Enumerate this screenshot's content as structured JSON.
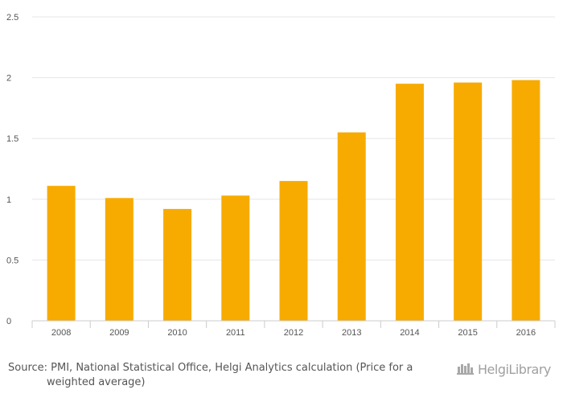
{
  "chart_data": {
    "type": "bar",
    "categories": [
      "2008",
      "2009",
      "2010",
      "2011",
      "2012",
      "2013",
      "2014",
      "2015",
      "2016"
    ],
    "values": [
      1.11,
      1.01,
      0.92,
      1.03,
      1.15,
      1.55,
      1.95,
      1.96,
      1.98
    ],
    "yticks": [
      "0",
      "0.5",
      "1",
      "1.5",
      "2",
      "2.5"
    ],
    "ylim": [
      0,
      2.5
    ],
    "grid": true,
    "bar_color": "#f7ab00",
    "title": "",
    "xlabel": "",
    "ylabel": ""
  },
  "footer": {
    "source": "Source: PMI, National Statistical Office, Helgi Analytics calculation (Price for a weighted average)",
    "brand": "HelgiLibrary"
  },
  "colors": {
    "grid": "#e6e6e6",
    "axis": "#cccccc",
    "brand": "#a0a0a0",
    "text": "#555555"
  },
  "icons": {
    "brand_logo": "helgi-library-logo-icon"
  }
}
